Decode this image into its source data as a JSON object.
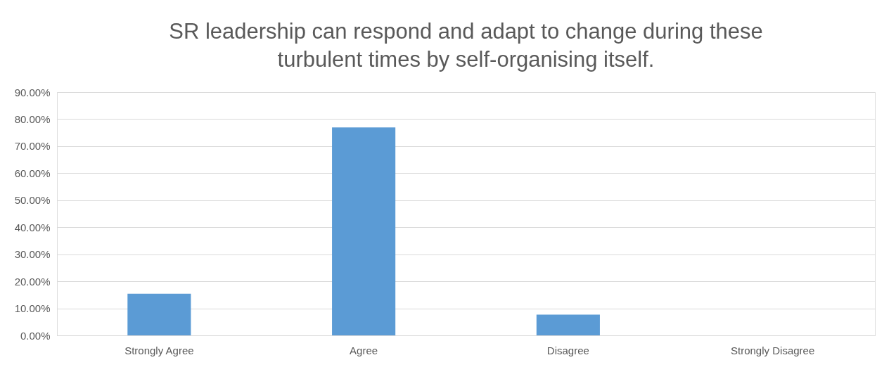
{
  "chart_data": {
    "type": "bar",
    "title": "SR leadership can respond and adapt to change during these turbulent times by self-organising itself.",
    "categories": [
      "Strongly Agree",
      "Agree",
      "Disagree",
      "Strongly Disagree"
    ],
    "values": [
      15.4,
      76.9,
      7.7,
      0
    ],
    "color": "#5b9bd5",
    "ylim": [
      0,
      90
    ],
    "yticks": [
      {
        "value": 0,
        "label": "0.00%"
      },
      {
        "value": 10,
        "label": "10.00%"
      },
      {
        "value": 20,
        "label": "20.00%"
      },
      {
        "value": 30,
        "label": "30.00%"
      },
      {
        "value": 40,
        "label": "40.00%"
      },
      {
        "value": 50,
        "label": "50.00%"
      },
      {
        "value": 60,
        "label": "60.00%"
      },
      {
        "value": 70,
        "label": "70.00%"
      },
      {
        "value": 80,
        "label": "80.00%"
      },
      {
        "value": 90,
        "label": "90.00%"
      }
    ],
    "grid": "y"
  }
}
